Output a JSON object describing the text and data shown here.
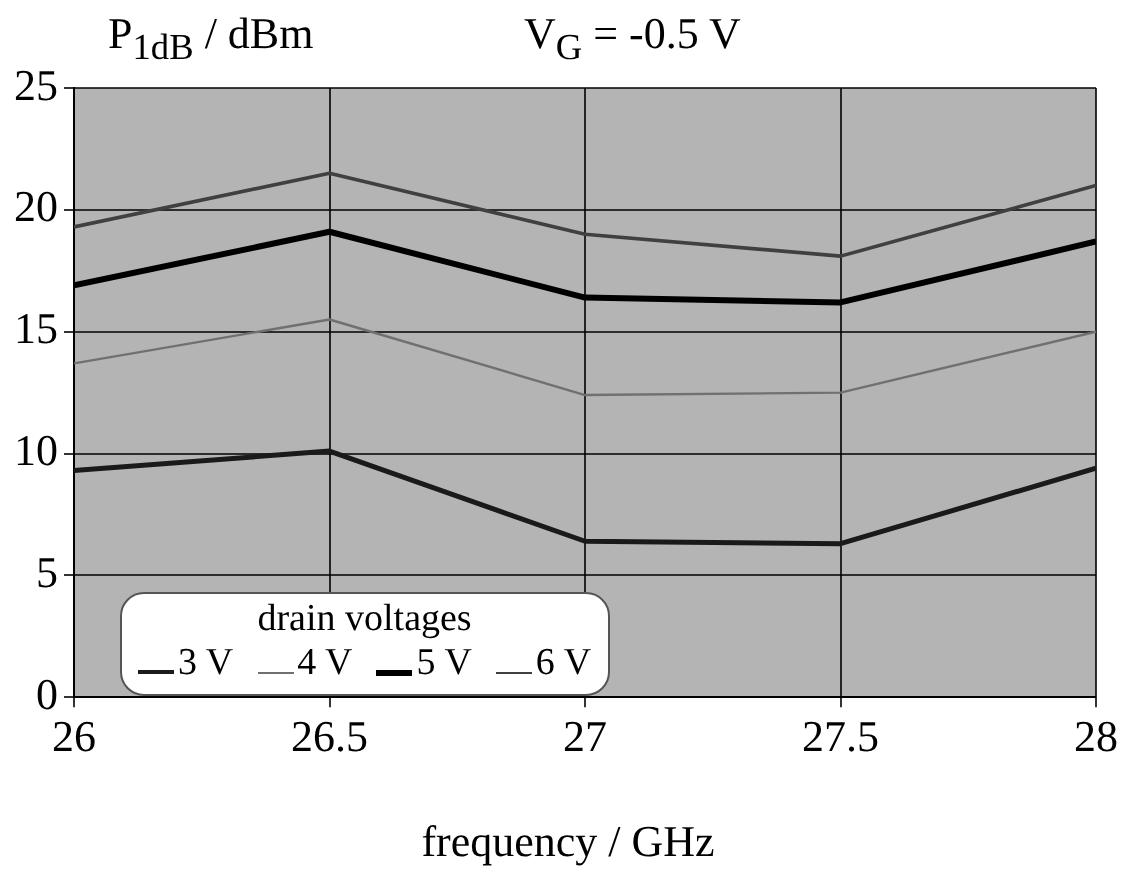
{
  "chart_data": {
    "type": "line",
    "title": "V$_{G}$ = -0.5 V",
    "ylabel": "P$_{1dB}$ / dBm",
    "xlabel": "frequency / GHz",
    "legend_title": "drain voltages",
    "legend": "bottom left",
    "x": [
      26,
      26.5,
      27,
      27.5,
      28
    ],
    "series": [
      {
        "name": "3 V",
        "color": "#1a1a1a",
        "values": [
          9.3,
          10.1,
          6.4,
          6.3,
          9.4
        ]
      },
      {
        "name": "4 V",
        "color": "#707070",
        "values": [
          13.7,
          15.5,
          12.4,
          12.5,
          15.0
        ]
      },
      {
        "name": "5 V",
        "color": "#000000",
        "values": [
          16.9,
          19.1,
          16.4,
          16.2,
          18.7
        ]
      },
      {
        "name": "6 V",
        "color": "#404040",
        "values": [
          19.3,
          21.5,
          19.0,
          18.1,
          21.0
        ]
      }
    ],
    "xlim": [
      26,
      28
    ],
    "xticks": [
      26,
      26.5,
      27,
      27.5,
      28
    ],
    "ylim": [
      0,
      25
    ],
    "yticks": [
      0,
      5,
      10,
      15,
      20,
      25
    ],
    "grid": true,
    "marker": "none",
    "line_style": "solid"
  }
}
